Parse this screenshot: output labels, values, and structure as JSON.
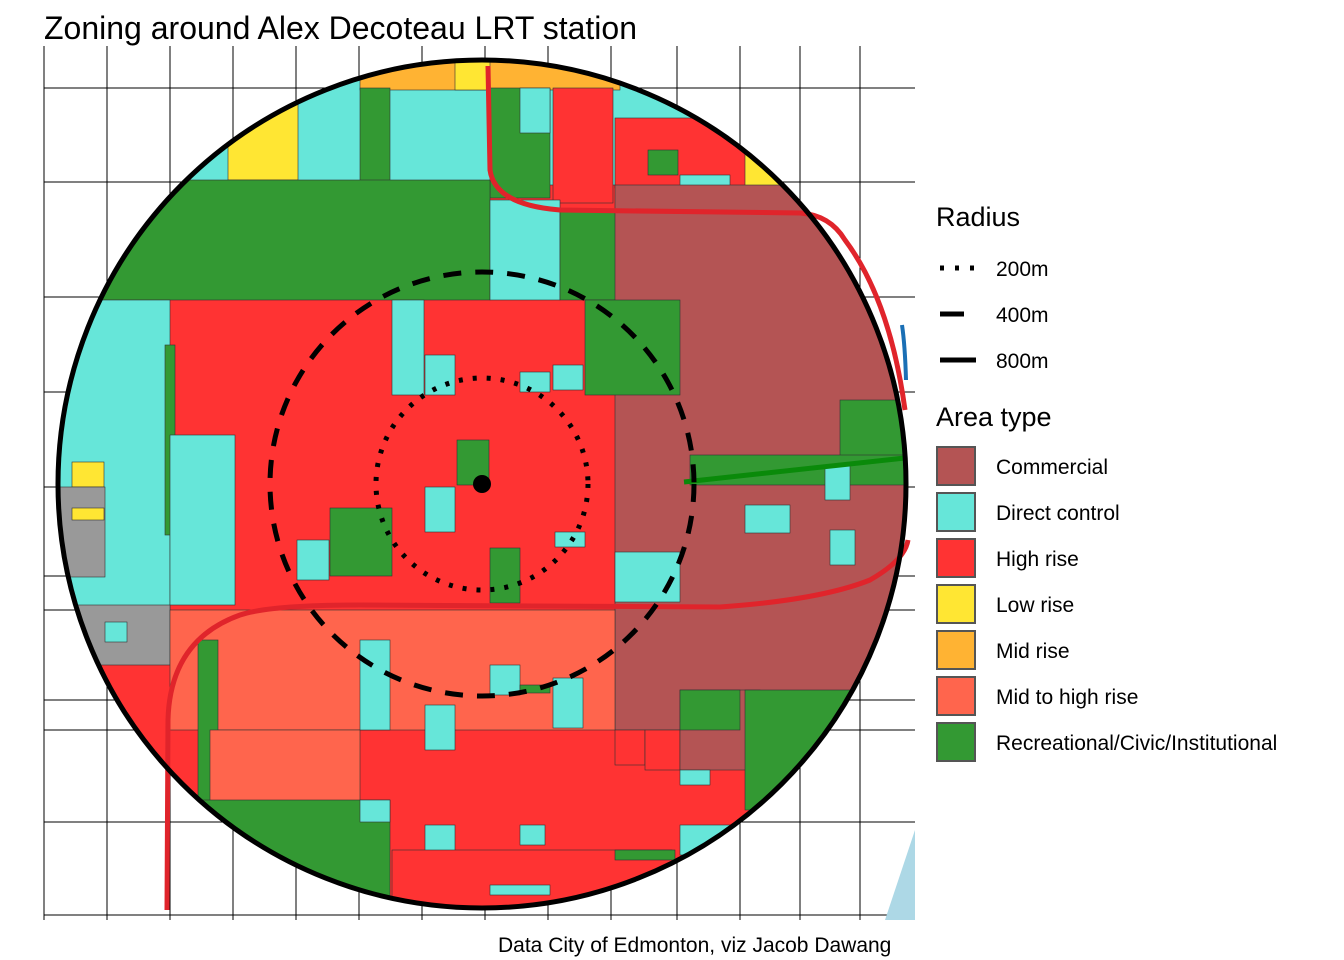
{
  "title": "Zoning around Alex Decoteau LRT station",
  "caption": "Data City of Edmonton, viz Jacob Dawang",
  "legend": {
    "radius_title": "Radius",
    "radius": [
      {
        "label": "200m",
        "style": "dotted"
      },
      {
        "label": "400m",
        "style": "dashed"
      },
      {
        "label": "800m",
        "style": "solid"
      }
    ],
    "area_title": "Area type",
    "areas": [
      {
        "label": "Commercial",
        "color": "#b45454"
      },
      {
        "label": "Direct control",
        "color": "#66e6d9"
      },
      {
        "label": "High rise",
        "color": "#ff3333"
      },
      {
        "label": "Low rise",
        "color": "#ffe633"
      },
      {
        "label": "Mid rise",
        "color": "#ffb333"
      },
      {
        "label": "Mid to high rise",
        "color": "#ff654d"
      },
      {
        "label": "Recreational/Civic/Institutional",
        "color": "#339933"
      }
    ]
  },
  "colors": {
    "lrt": "#e0242b",
    "unzoned": "#999999",
    "water": "#add8e6"
  }
}
